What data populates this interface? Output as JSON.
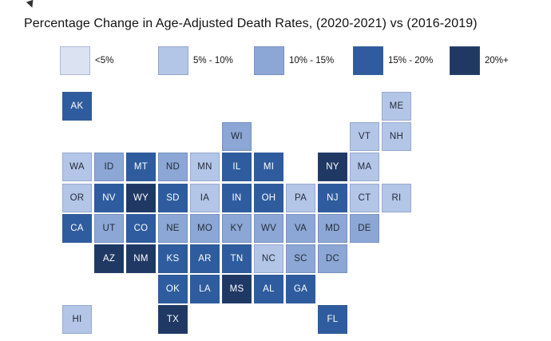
{
  "title": "Percentage Change in Age-Adjusted Death Rates, (2020-2021) vs (2016-2019)",
  "colors": {
    "background": "#ffffff",
    "tile_dark_text": "#242b38",
    "tile_light_text": "#ffffff"
  },
  "chart_data": {
    "type": "heatmap",
    "subtype": "us-state-tile-grid-map",
    "title": "Percentage Change in Age-Adjusted Death Rates, (2020-2021) vs (2016-2019)",
    "legend_position": "top",
    "grid": {
      "rows": 8,
      "cols": 11
    },
    "buckets": [
      {
        "label": "<5%",
        "color": "#dbe3f2"
      },
      {
        "label": "5% - 10%",
        "color": "#b4c6e7"
      },
      {
        "label": "10% - 15%",
        "color": "#8ca7d5"
      },
      {
        "label": "15% - 20%",
        "color": "#2e5c9e"
      },
      {
        "label": "20%+",
        "color": "#1f3864"
      }
    ],
    "states": [
      {
        "code": "AK",
        "row": 1,
        "col": 1,
        "bucket": 3
      },
      {
        "code": "ME",
        "row": 1,
        "col": 11,
        "bucket": 1
      },
      {
        "code": "WI",
        "row": 2,
        "col": 6,
        "bucket": 2
      },
      {
        "code": "VT",
        "row": 2,
        "col": 10,
        "bucket": 1
      },
      {
        "code": "NH",
        "row": 2,
        "col": 11,
        "bucket": 1
      },
      {
        "code": "WA",
        "row": 3,
        "col": 1,
        "bucket": 1
      },
      {
        "code": "ID",
        "row": 3,
        "col": 2,
        "bucket": 2
      },
      {
        "code": "MT",
        "row": 3,
        "col": 3,
        "bucket": 3
      },
      {
        "code": "ND",
        "row": 3,
        "col": 4,
        "bucket": 2
      },
      {
        "code": "MN",
        "row": 3,
        "col": 5,
        "bucket": 1
      },
      {
        "code": "IL",
        "row": 3,
        "col": 6,
        "bucket": 3
      },
      {
        "code": "MI",
        "row": 3,
        "col": 7,
        "bucket": 3
      },
      {
        "code": "NY",
        "row": 3,
        "col": 9,
        "bucket": 4
      },
      {
        "code": "MA",
        "row": 3,
        "col": 10,
        "bucket": 1
      },
      {
        "code": "OR",
        "row": 4,
        "col": 1,
        "bucket": 1
      },
      {
        "code": "NV",
        "row": 4,
        "col": 2,
        "bucket": 3
      },
      {
        "code": "WY",
        "row": 4,
        "col": 3,
        "bucket": 4
      },
      {
        "code": "SD",
        "row": 4,
        "col": 4,
        "bucket": 3
      },
      {
        "code": "IA",
        "row": 4,
        "col": 5,
        "bucket": 1
      },
      {
        "code": "IN",
        "row": 4,
        "col": 6,
        "bucket": 3
      },
      {
        "code": "OH",
        "row": 4,
        "col": 7,
        "bucket": 3
      },
      {
        "code": "PA",
        "row": 4,
        "col": 8,
        "bucket": 1
      },
      {
        "code": "NJ",
        "row": 4,
        "col": 9,
        "bucket": 3
      },
      {
        "code": "CT",
        "row": 4,
        "col": 10,
        "bucket": 1
      },
      {
        "code": "RI",
        "row": 4,
        "col": 11,
        "bucket": 1
      },
      {
        "code": "CA",
        "row": 5,
        "col": 1,
        "bucket": 3
      },
      {
        "code": "UT",
        "row": 5,
        "col": 2,
        "bucket": 2
      },
      {
        "code": "CO",
        "row": 5,
        "col": 3,
        "bucket": 3
      },
      {
        "code": "NE",
        "row": 5,
        "col": 4,
        "bucket": 2
      },
      {
        "code": "MO",
        "row": 5,
        "col": 5,
        "bucket": 2
      },
      {
        "code": "KY",
        "row": 5,
        "col": 6,
        "bucket": 2
      },
      {
        "code": "WV",
        "row": 5,
        "col": 7,
        "bucket": 2
      },
      {
        "code": "VA",
        "row": 5,
        "col": 8,
        "bucket": 2
      },
      {
        "code": "MD",
        "row": 5,
        "col": 9,
        "bucket": 2
      },
      {
        "code": "DE",
        "row": 5,
        "col": 10,
        "bucket": 2
      },
      {
        "code": "AZ",
        "row": 6,
        "col": 2,
        "bucket": 4
      },
      {
        "code": "NM",
        "row": 6,
        "col": 3,
        "bucket": 4
      },
      {
        "code": "KS",
        "row": 6,
        "col": 4,
        "bucket": 3
      },
      {
        "code": "AR",
        "row": 6,
        "col": 5,
        "bucket": 3
      },
      {
        "code": "TN",
        "row": 6,
        "col": 6,
        "bucket": 3
      },
      {
        "code": "NC",
        "row": 6,
        "col": 7,
        "bucket": 1
      },
      {
        "code": "SC",
        "row": 6,
        "col": 8,
        "bucket": 2
      },
      {
        "code": "DC",
        "row": 6,
        "col": 9,
        "bucket": 2
      },
      {
        "code": "OK",
        "row": 7,
        "col": 4,
        "bucket": 3
      },
      {
        "code": "LA",
        "row": 7,
        "col": 5,
        "bucket": 3
      },
      {
        "code": "MS",
        "row": 7,
        "col": 6,
        "bucket": 4
      },
      {
        "code": "AL",
        "row": 7,
        "col": 7,
        "bucket": 3
      },
      {
        "code": "GA",
        "row": 7,
        "col": 8,
        "bucket": 3
      },
      {
        "code": "HI",
        "row": 8,
        "col": 1,
        "bucket": 1
      },
      {
        "code": "TX",
        "row": 8,
        "col": 4,
        "bucket": 4
      },
      {
        "code": "FL",
        "row": 8,
        "col": 9,
        "bucket": 3
      }
    ]
  }
}
